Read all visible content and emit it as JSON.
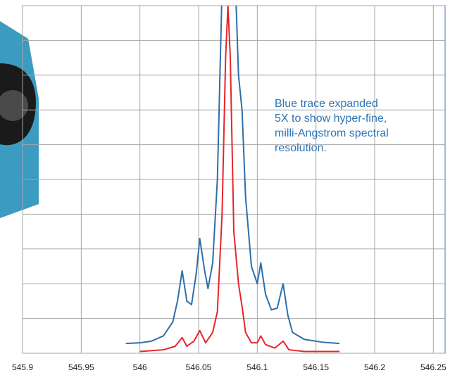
{
  "chart_data": {
    "type": "line",
    "xlim": [
      545.9,
      546.26
    ],
    "xticks": [
      545.9,
      545.95,
      546,
      546.05,
      546.1,
      546.15,
      546.2,
      546.25
    ],
    "ylim": [
      0,
      10
    ],
    "yticks": [
      0,
      1,
      2,
      3,
      4,
      5,
      6,
      7,
      8,
      9,
      10
    ],
    "grid": true,
    "annotation": [
      "Blue trace expanded",
      "5X to show hyper-fine,",
      "milli-Angstrom spectral",
      "resolution."
    ],
    "series": [
      {
        "color": "#2e6eab",
        "x": [
          545.988,
          546.0,
          546.01,
          546.02,
          546.028,
          546.032,
          546.036,
          546.04,
          546.044,
          546.048,
          546.051,
          546.055,
          546.058,
          546.062,
          546.066,
          546.07,
          546.075,
          546.08,
          546.084,
          546.087,
          546.09,
          546.095,
          546.1,
          546.103,
          546.107,
          546.112,
          546.117,
          546.122,
          546.126,
          546.13,
          546.14,
          546.155,
          546.17
        ],
        "values": [
          0.28,
          0.3,
          0.35,
          0.5,
          0.9,
          1.5,
          2.37,
          1.5,
          1.4,
          2.3,
          3.3,
          2.4,
          1.86,
          2.6,
          5,
          10.5,
          12,
          12,
          8,
          7,
          4.5,
          2.5,
          2.0,
          2.6,
          1.7,
          1.25,
          1.3,
          2.0,
          1.1,
          0.6,
          0.4,
          0.32,
          0.28
        ]
      },
      {
        "color": "#e8252a",
        "x": [
          546.0,
          546.02,
          546.03,
          546.036,
          546.04,
          546.046,
          546.051,
          546.056,
          546.062,
          546.066,
          546.07,
          546.073,
          546.075,
          546.077,
          546.08,
          546.084,
          546.087,
          546.09,
          546.095,
          546.1,
          546.103,
          546.107,
          546.115,
          546.122,
          546.127,
          546.14,
          546.17
        ],
        "values": [
          0.05,
          0.1,
          0.2,
          0.45,
          0.2,
          0.35,
          0.65,
          0.3,
          0.6,
          1.2,
          4,
          8.5,
          10,
          8.5,
          3.5,
          2,
          1.35,
          0.6,
          0.3,
          0.3,
          0.5,
          0.25,
          0.15,
          0.35,
          0.1,
          0.05,
          0.05
        ]
      }
    ]
  }
}
